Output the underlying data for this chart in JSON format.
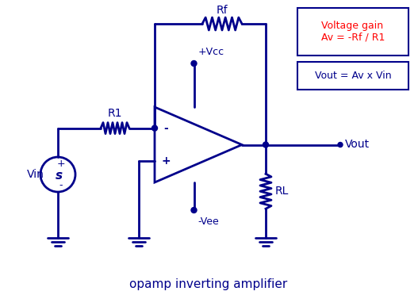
{
  "bg_color": "#ffffff",
  "circuit_color": "#00008B",
  "label_color": "#00008B",
  "title_text": "opamp inverting amplifier",
  "title_fontsize": 11,
  "box1_text": "Voltage gain\nAv = -Rf / R1",
  "box2_text": "Vout = Av x Vin",
  "label_Rf": "Rf",
  "label_R1": "R1",
  "label_RL": "RL",
  "label_Vin": "Vin",
  "label_Vout": "Vout",
  "label_Vcc": "+Vcc",
  "label_Vee": "-Vee",
  "label_minus": "-",
  "label_plus": "+"
}
